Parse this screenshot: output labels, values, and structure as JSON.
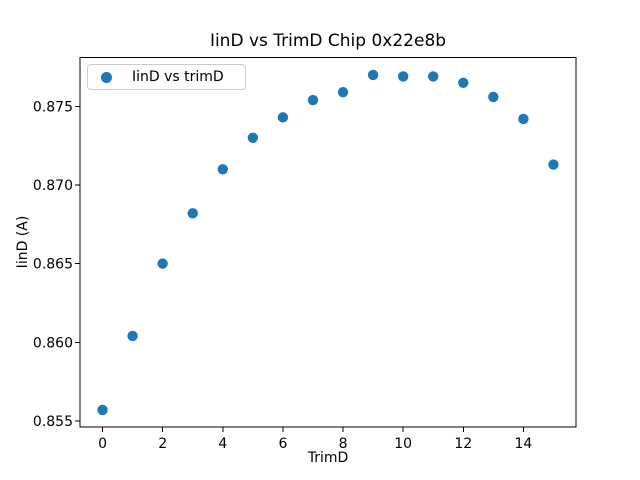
{
  "figure": {
    "background": "#ffffff",
    "axes_color": "#000000",
    "text_color": "#000000"
  },
  "chart_data": {
    "type": "scatter",
    "title": "IinD vs TrimD Chip 0x22e8b",
    "xlabel": "TrimD",
    "ylabel": "IinD (A)",
    "grid": false,
    "legend": {
      "position": "upper left",
      "entries": [
        "IinD vs trimD"
      ]
    },
    "x": [
      0,
      1,
      2,
      3,
      4,
      5,
      6,
      7,
      8,
      9,
      10,
      11,
      12,
      13,
      14,
      15
    ],
    "series": [
      {
        "name": "IinD vs trimD",
        "marker": "circle",
        "color": "#1f77b4",
        "values": [
          0.8557,
          0.8604,
          0.865,
          0.8682,
          0.871,
          0.873,
          0.8743,
          0.8754,
          0.8759,
          0.877,
          0.8769,
          0.8769,
          0.8765,
          0.8756,
          0.8742,
          0.8713
        ]
      }
    ],
    "xlim": [
      -0.75,
      15.75
    ],
    "ylim": [
      0.8546,
      0.8781
    ],
    "xticks": {
      "values": [
        0,
        2,
        4,
        6,
        8,
        10,
        12,
        14
      ],
      "labels": [
        "0",
        "2",
        "4",
        "6",
        "8",
        "10",
        "12",
        "14"
      ]
    },
    "yticks": {
      "values": [
        0.855,
        0.86,
        0.865,
        0.87,
        0.875
      ],
      "labels": [
        "0.855",
        "0.860",
        "0.865",
        "0.870",
        "0.875"
      ]
    }
  }
}
